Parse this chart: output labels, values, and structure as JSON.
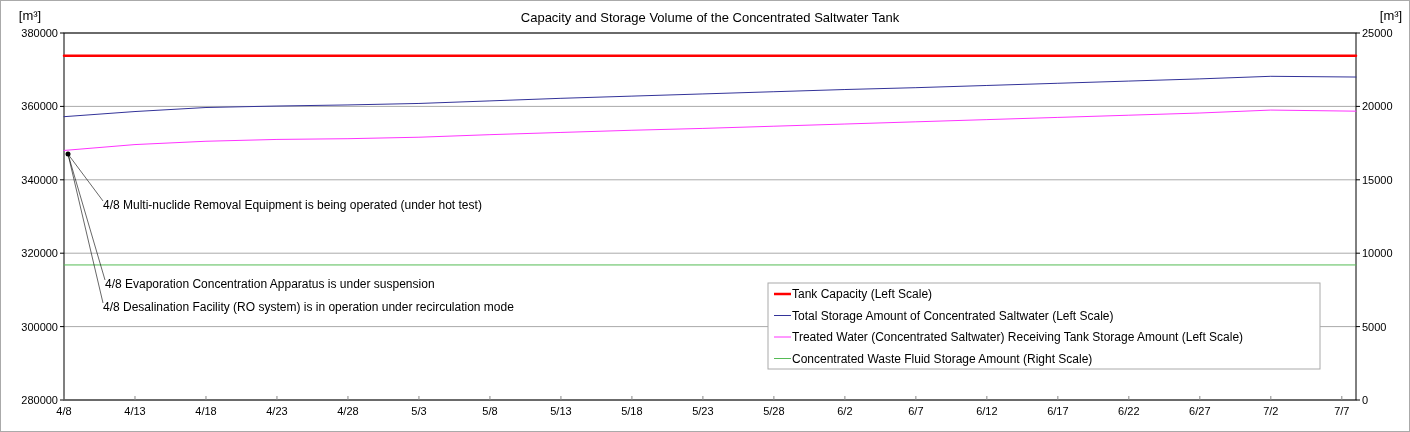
{
  "chart_data": {
    "type": "line",
    "title": "Capacity and Storage Volume of the Concentrated Saltwater Tank",
    "ylabel": "[m³]",
    "y2label": "[m³]",
    "xlim": [
      "--04-08",
      "--07-08"
    ],
    "xticks": [
      {
        "value": "--04-08",
        "label": "4/8"
      },
      {
        "value": "--04-13",
        "label": "4/13"
      },
      {
        "value": "--04-18",
        "label": "4/18"
      },
      {
        "value": "--04-23",
        "label": "4/23"
      },
      {
        "value": "--04-28",
        "label": "4/28"
      },
      {
        "value": "--05-03",
        "label": "5/3"
      },
      {
        "value": "--05-08",
        "label": "5/8"
      },
      {
        "value": "--05-13",
        "label": "5/13"
      },
      {
        "value": "--05-18",
        "label": "5/18"
      },
      {
        "value": "--05-23",
        "label": "5/23"
      },
      {
        "value": "--05-28",
        "label": "5/28"
      },
      {
        "value": "--06-02",
        "label": "6/2"
      },
      {
        "value": "--06-07",
        "label": "6/7"
      },
      {
        "value": "--06-12",
        "label": "6/12"
      },
      {
        "value": "--06-17",
        "label": "6/17"
      },
      {
        "value": "--06-22",
        "label": "6/22"
      },
      {
        "value": "--06-27",
        "label": "6/27"
      },
      {
        "value": "--07-02",
        "label": "7/2"
      },
      {
        "value": "--07-07",
        "label": "7/7"
      }
    ],
    "ylim": [
      280000,
      380000
    ],
    "yticks": [
      280000,
      300000,
      320000,
      340000,
      360000,
      380000
    ],
    "y2lim": [
      0,
      25000
    ],
    "y2ticks": [
      0,
      5000,
      10000,
      15000,
      20000,
      25000
    ],
    "grid": "y",
    "legend": "bottom right",
    "marker": "none",
    "line_style": "solid",
    "series": [
      {
        "name": "Tank Capacity (Left Scale)",
        "color": "#ff0000",
        "x": [
          "--04-08",
          "--07-08"
        ],
        "values": [
          373800,
          373800
        ]
      },
      {
        "name": "Total Storage Amount of Concentrated Saltwater (Left Scale)",
        "color": "#333399",
        "x": [
          "--04-08",
          "--04-13",
          "--04-18",
          "--04-23",
          "--04-28",
          "--05-03",
          "--05-08",
          "--05-13",
          "--05-18",
          "--05-23",
          "--05-28",
          "--06-02",
          "--06-07",
          "--06-12",
          "--06-17",
          "--06-22",
          "--06-27",
          "--07-02",
          "--07-08"
        ],
        "values": [
          357200,
          358600,
          359700,
          360100,
          360400,
          360800,
          361500,
          362200,
          362800,
          363400,
          364000,
          364600,
          365100,
          365700,
          366300,
          366900,
          367500,
          368200,
          368000
        ]
      },
      {
        "name": "Treated Water (Concentrated Saltwater) Receiving Tank Storage Amount (Left Scale)",
        "color": "#ff33ff",
        "x": [
          "--04-08",
          "--04-13",
          "--04-18",
          "--04-23",
          "--04-28",
          "--05-03",
          "--05-08",
          "--05-13",
          "--05-18",
          "--05-23",
          "--05-28",
          "--06-02",
          "--06-07",
          "--06-12",
          "--06-17",
          "--06-22",
          "--06-27",
          "--07-02",
          "--07-08"
        ],
        "values": [
          348000,
          349600,
          350500,
          351000,
          351200,
          351600,
          352300,
          352900,
          353500,
          354000,
          354600,
          355200,
          355800,
          356400,
          357000,
          357600,
          358200,
          359000,
          358700
        ]
      },
      {
        "name": "Concentrated Waste Fluid Storage Amount (Right Scale)",
        "color": "#55bb55",
        "axis": "y2",
        "x": [
          "--04-08",
          "--07-08"
        ],
        "values": [
          9200,
          9200
        ]
      }
    ],
    "annotations": [
      {
        "text": "4/8 Multi-nuclide Removal Equipment is being operated (under hot test)",
        "x": "--04-08",
        "y": 347000
      },
      {
        "text": "4/8 Evaporation Concentration Apparatus is under suspension",
        "x": "--04-08",
        "y": 347000
      },
      {
        "text": "4/8 Desalination Facility (RO system) is in operation under recirculation mode",
        "x": "--04-08",
        "y": 347000
      }
    ]
  }
}
